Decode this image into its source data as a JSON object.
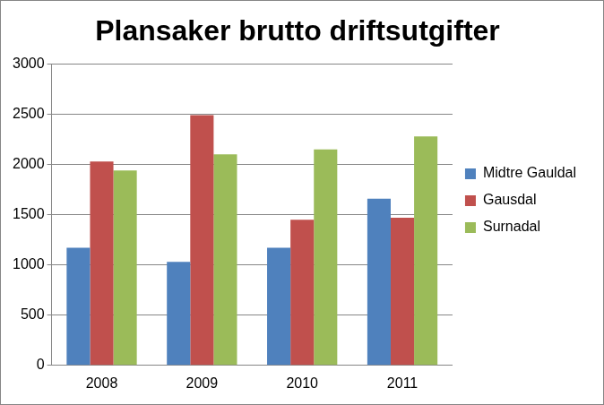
{
  "chart_data": {
    "type": "bar",
    "title": "Plansaker brutto driftsutgifter",
    "categories": [
      "2008",
      "2009",
      "2010",
      "2011"
    ],
    "series": [
      {
        "name": "Midtre Gauldal",
        "color": "#4f81bd",
        "values": [
          1170,
          1030,
          1170,
          1660
        ]
      },
      {
        "name": "Gausdal",
        "color": "#c0504d",
        "values": [
          2030,
          2490,
          1450,
          1470
        ]
      },
      {
        "name": "Surnadal",
        "color": "#9bbb59",
        "values": [
          1940,
          2100,
          2150,
          2280
        ]
      }
    ],
    "ylim": [
      0,
      3000
    ],
    "yticks": [
      0,
      500,
      1000,
      1500,
      2000,
      2500,
      3000
    ],
    "grid": true,
    "legend": "right"
  }
}
